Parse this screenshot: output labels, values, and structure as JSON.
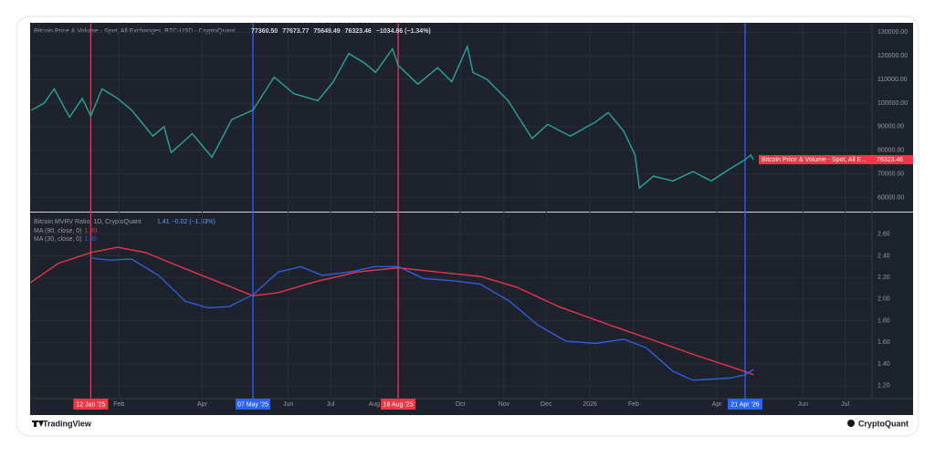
{
  "chart_data": [
    {
      "type": "line",
      "title": "Bitcoin Price & Volume - Spot, All Exchanges, BTC-USD - CryptoQuant",
      "ohlc_labels": [
        "77360.50",
        "77673.77",
        "75649.49",
        "76323.46",
        "−1034.86 (−1.34%)"
      ],
      "last_label": "Bitcoin Price & Volume - Spot, All E...",
      "last_price_label": "76323.46",
      "xlim": [
        "2024-11-30",
        "2026-07-20"
      ],
      "xticks": [
        {
          "value": "2025-02-01",
          "label": "Feb"
        },
        {
          "value": "2025-04-01",
          "label": "Apr"
        },
        {
          "value": "2025-06-01",
          "label": "Jun"
        },
        {
          "value": "2025-07-01",
          "label": "Jul"
        },
        {
          "value": "2025-08-01",
          "label": "Aug"
        },
        {
          "value": "2025-10-01",
          "label": "Oct"
        },
        {
          "value": "2025-11-01",
          "label": "Nov"
        },
        {
          "value": "2025-12-01",
          "label": "Dec"
        },
        {
          "value": "2026-01-01",
          "label": "2026"
        },
        {
          "value": "2026-02-01",
          "label": "Feb"
        },
        {
          "value": "2026-04-01",
          "label": "Apr"
        },
        {
          "value": "2026-06-01",
          "label": "Jun"
        },
        {
          "value": "2026-07-01",
          "label": "Jul"
        }
      ],
      "markers": [
        {
          "x": "2025-01-12",
          "label": "12 Jan '25",
          "color": "#f23645"
        },
        {
          "x": "2025-05-07",
          "label": "07 May '25",
          "color": "#2962ff"
        },
        {
          "x": "2025-08-18",
          "label": "18 Aug '25",
          "color": "#f23645"
        },
        {
          "x": "2026-04-21",
          "label": "21 Apr '26",
          "color": "#2962ff"
        }
      ],
      "ylim": [
        54000,
        134000
      ],
      "yticks": [
        {
          "value": 60000,
          "label": "60000.00"
        },
        {
          "value": 70000,
          "label": "70000.00"
        },
        {
          "value": 80000,
          "label": "80000.00"
        },
        {
          "value": 90000,
          "label": "90000.00"
        },
        {
          "value": 100000,
          "label": "100000.00"
        },
        {
          "value": 110000,
          "label": "110000.00"
        },
        {
          "value": 120000,
          "label": "120000.00"
        },
        {
          "value": 130000,
          "label": "130000.00"
        }
      ],
      "grid": true,
      "series": [
        {
          "color": "#26a69a",
          "x": [
            "2024-12-01",
            "2024-12-10",
            "2024-12-17",
            "2024-12-28",
            "2025-01-06",
            "2025-01-12",
            "2025-01-20",
            "2025-01-31",
            "2025-02-10",
            "2025-02-25",
            "2025-03-05",
            "2025-03-10",
            "2025-03-25",
            "2025-04-08",
            "2025-04-22",
            "2025-05-07",
            "2025-05-22",
            "2025-06-05",
            "2025-06-22",
            "2025-07-03",
            "2025-07-14",
            "2025-07-25",
            "2025-08-02",
            "2025-08-14",
            "2025-08-18",
            "2025-09-01",
            "2025-09-15",
            "2025-09-25",
            "2025-10-06",
            "2025-10-10",
            "2025-10-20",
            "2025-11-04",
            "2025-11-21",
            "2025-12-02",
            "2025-12-18",
            "2026-01-05",
            "2026-01-14",
            "2026-01-25",
            "2026-02-02",
            "2026-02-05",
            "2026-02-15",
            "2026-03-01",
            "2026-03-15",
            "2026-03-28",
            "2026-04-10",
            "2026-04-21",
            "2026-04-25",
            "2026-04-27"
          ],
          "values": [
            97000,
            100000,
            106000,
            94000,
            102000,
            94500,
            106000,
            102000,
            97000,
            86000,
            90000,
            79000,
            87000,
            77000,
            93000,
            97000,
            111000,
            104000,
            101000,
            109000,
            121000,
            117000,
            113000,
            123000,
            116000,
            108000,
            115000,
            109000,
            124000,
            113000,
            110000,
            101000,
            85000,
            91000,
            86000,
            92000,
            96000,
            88000,
            78000,
            64000,
            69000,
            67000,
            71000,
            67000,
            72000,
            76000,
            78000,
            76000
          ]
        }
      ]
    },
    {
      "type": "line",
      "title": "Bitcoin MVRV Ratio, 1D, CryptoQuant",
      "value_text": "1.41 −0.02 (−1.33%)",
      "xlim": [
        "2024-11-30",
        "2026-07-20"
      ],
      "ylim": [
        1.08,
        2.8
      ],
      "yticks": [
        {
          "value": 1.2,
          "label": "1.20"
        },
        {
          "value": 1.4,
          "label": "1.40"
        },
        {
          "value": 1.6,
          "label": "1.60"
        },
        {
          "value": 1.8,
          "label": "1.80"
        },
        {
          "value": 2.0,
          "label": "2.00"
        },
        {
          "value": 2.2,
          "label": "2.20"
        },
        {
          "value": 2.4,
          "label": "2.40"
        },
        {
          "value": 2.6,
          "label": "2.60"
        }
      ],
      "grid": true,
      "series": [
        {
          "name": "MA (90, close, 0)",
          "value_label": "1.30",
          "color": "#e5354a",
          "x": [
            "2024-11-30",
            "2024-12-20",
            "2025-01-12",
            "2025-01-31",
            "2025-02-20",
            "2025-03-20",
            "2025-04-20",
            "2025-05-07",
            "2025-05-25",
            "2025-06-20",
            "2025-07-20",
            "2025-08-18",
            "2025-09-15",
            "2025-10-15",
            "2025-11-10",
            "2025-12-10",
            "2026-01-15",
            "2026-02-15",
            "2026-03-15",
            "2026-04-21",
            "2026-04-27"
          ],
          "values": [
            2.15,
            2.33,
            2.43,
            2.48,
            2.43,
            2.28,
            2.12,
            2.03,
            2.06,
            2.16,
            2.25,
            2.29,
            2.25,
            2.21,
            2.11,
            1.93,
            1.76,
            1.62,
            1.49,
            1.33,
            1.3
          ]
        },
        {
          "name": "MA (30, close, 0)",
          "value_label": "1.35",
          "color": "#2f5fd8",
          "x": [
            "2025-01-12",
            "2025-01-25",
            "2025-02-10",
            "2025-03-01",
            "2025-03-20",
            "2025-04-05",
            "2025-04-20",
            "2025-05-07",
            "2025-05-25",
            "2025-06-10",
            "2025-06-25",
            "2025-07-15",
            "2025-08-01",
            "2025-08-18",
            "2025-09-05",
            "2025-09-25",
            "2025-10-15",
            "2025-11-05",
            "2025-11-25",
            "2025-12-15",
            "2026-01-05",
            "2026-01-25",
            "2026-02-10",
            "2026-03-01",
            "2026-03-15",
            "2026-04-10",
            "2026-04-21",
            "2026-04-27"
          ],
          "values": [
            2.38,
            2.36,
            2.37,
            2.22,
            1.98,
            1.92,
            1.93,
            2.04,
            2.25,
            2.3,
            2.22,
            2.25,
            2.3,
            2.3,
            2.19,
            2.17,
            2.14,
            1.98,
            1.76,
            1.61,
            1.59,
            1.63,
            1.55,
            1.33,
            1.25,
            1.27,
            1.3,
            1.35
          ]
        }
      ]
    }
  ],
  "footer": {
    "left": "TradingView",
    "right": "CryptoQuant"
  }
}
